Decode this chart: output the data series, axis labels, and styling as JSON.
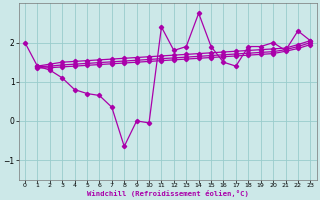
{
  "xlabel": "Windchill (Refroidissement éolien,°C)",
  "bg_color": "#cce8e8",
  "line_color": "#aa00aa",
  "grid_color": "#99cccc",
  "series1_x": [
    0,
    1,
    2,
    3,
    4,
    5,
    6,
    7,
    8,
    9,
    10,
    11,
    12,
    13,
    14,
    15,
    16,
    17,
    18,
    19,
    20,
    21,
    22,
    23
  ],
  "series1_y": [
    2.0,
    1.4,
    1.3,
    1.1,
    0.8,
    0.7,
    0.65,
    0.35,
    -0.65,
    0.0,
    -0.05,
    2.4,
    1.8,
    1.9,
    2.75,
    1.9,
    1.5,
    1.4,
    1.9,
    1.9,
    2.0,
    1.8,
    2.3,
    2.05
  ],
  "trend1_x": [
    1,
    2,
    3,
    4,
    5,
    6,
    7,
    8,
    9,
    10,
    11,
    12,
    13,
    14,
    15,
    16,
    17,
    18,
    19,
    20,
    21,
    22,
    23
  ],
  "trend1_y": [
    1.4,
    1.45,
    1.5,
    1.52,
    1.54,
    1.56,
    1.58,
    1.6,
    1.62,
    1.64,
    1.66,
    1.68,
    1.7,
    1.72,
    1.74,
    1.76,
    1.78,
    1.8,
    1.82,
    1.84,
    1.86,
    1.95,
    2.05
  ],
  "trend2_x": [
    1,
    2,
    3,
    4,
    5,
    6,
    7,
    8,
    9,
    10,
    11,
    12,
    13,
    14,
    15,
    16,
    17,
    18,
    19,
    20,
    21,
    22,
    23
  ],
  "trend2_y": [
    1.38,
    1.4,
    1.43,
    1.45,
    1.47,
    1.49,
    1.51,
    1.53,
    1.55,
    1.57,
    1.59,
    1.61,
    1.63,
    1.65,
    1.67,
    1.69,
    1.71,
    1.73,
    1.75,
    1.77,
    1.82,
    1.9,
    2.0
  ],
  "trend3_x": [
    1,
    2,
    3,
    4,
    5,
    6,
    7,
    8,
    9,
    10,
    11,
    12,
    13,
    14,
    15,
    16,
    17,
    18,
    19,
    20,
    21,
    22,
    23
  ],
  "trend3_y": [
    1.35,
    1.36,
    1.38,
    1.4,
    1.42,
    1.44,
    1.46,
    1.48,
    1.5,
    1.52,
    1.54,
    1.56,
    1.58,
    1.6,
    1.62,
    1.64,
    1.66,
    1.68,
    1.7,
    1.72,
    1.78,
    1.85,
    1.95
  ],
  "ylim": [
    -1.5,
    3.0
  ],
  "xlim": [
    -0.5,
    23.5
  ],
  "yticks": [
    -1,
    0,
    1,
    2
  ],
  "xticks": [
    0,
    1,
    2,
    3,
    4,
    5,
    6,
    7,
    8,
    9,
    10,
    11,
    12,
    13,
    14,
    15,
    16,
    17,
    18,
    19,
    20,
    21,
    22,
    23
  ],
  "marker": "D",
  "marker_size": 2.2,
  "linewidth": 0.9
}
